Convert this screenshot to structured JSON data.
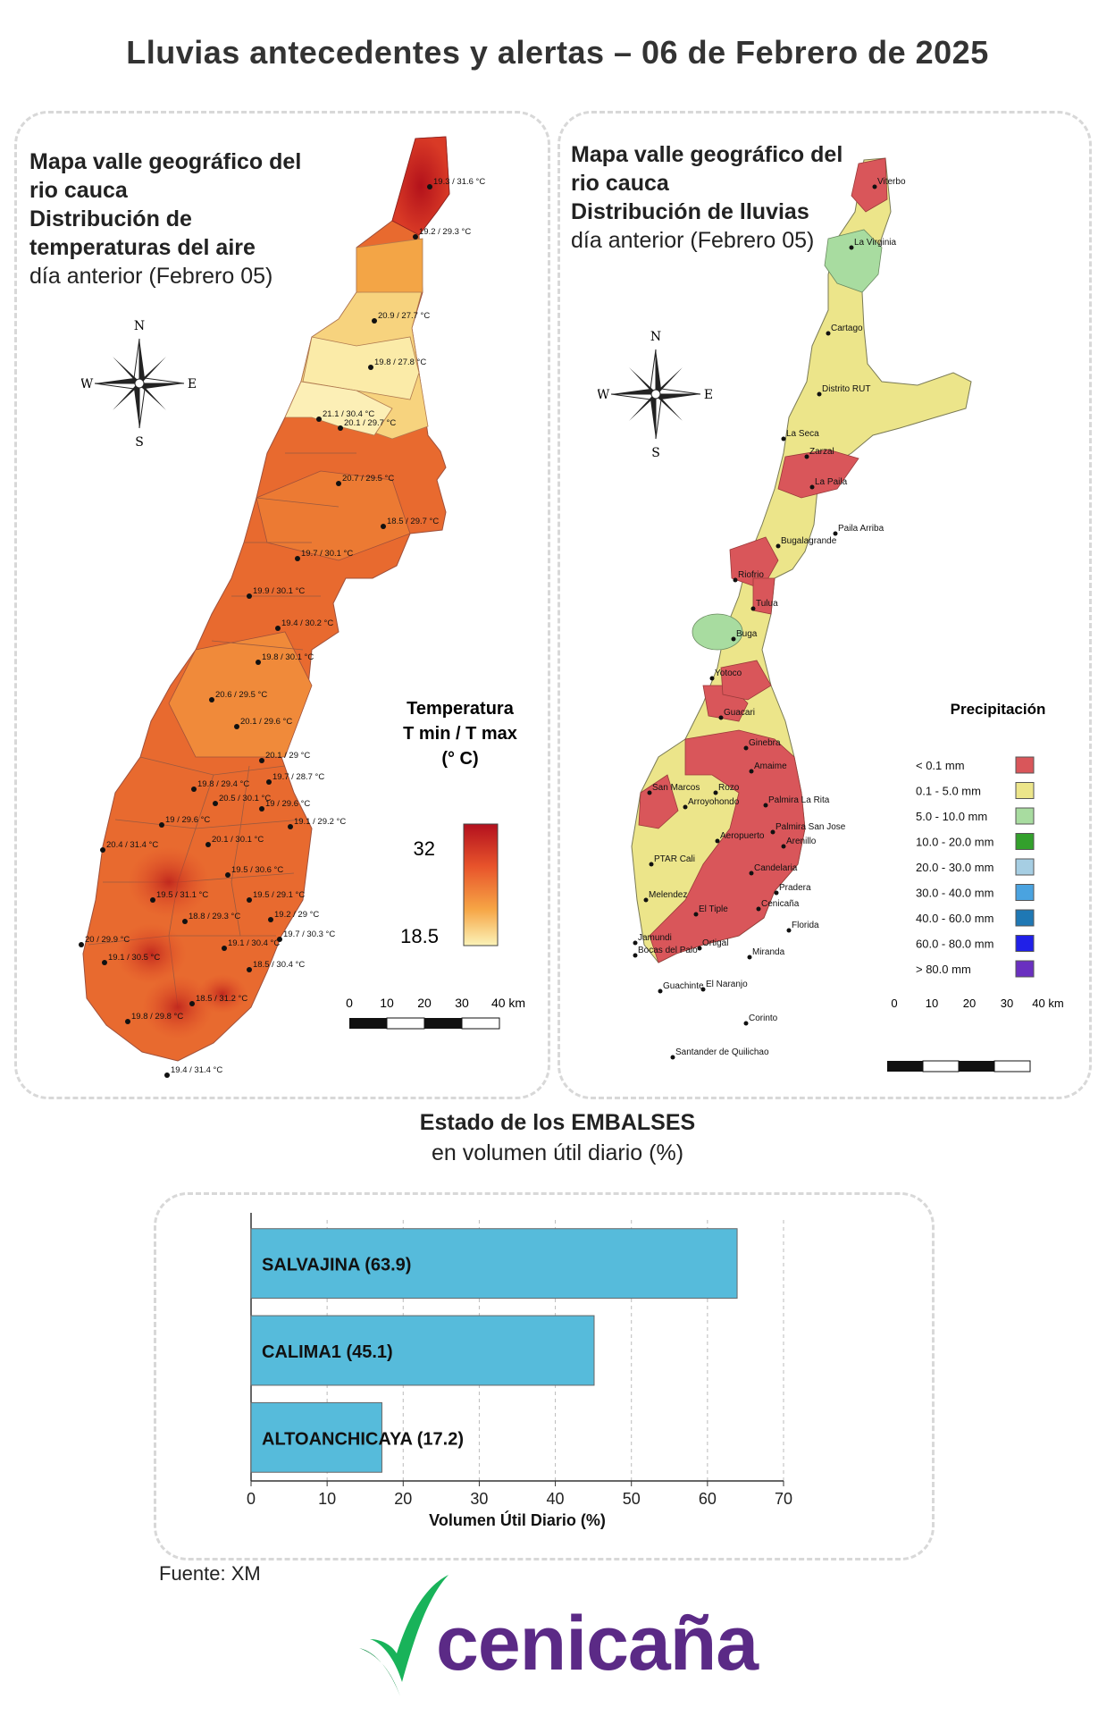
{
  "title": "Lluvias antecedentes y alertas – 06 de Febrero de 2025",
  "temp_panel": {
    "title_line1": "Mapa valle geográfico del",
    "title_line2": "rio cauca",
    "title_line3": "Distribución de",
    "title_line4": "temperaturas del aire",
    "subtitle": "día anterior (Febrero 05)",
    "legend_title_1": "Temperatura",
    "legend_title_2": "T min / T max",
    "legend_title_3": "(° C)",
    "legend_max": "32",
    "legend_min": "18.5",
    "scale_labels": [
      "0",
      "10",
      "20",
      "30",
      "40 km"
    ],
    "stations": [
      "19.3 / 31.6 °C",
      "19.2 / 29.3 °C",
      "20.9 / 27.7 °C",
      "19.8 / 27.8 °C",
      "21.1 / 30.4 °C",
      "20.1 / 29.7 °C",
      "20.7 / 29.5 °C",
      "18.5 / 29.7 °C",
      "19.7 / 30.1 °C",
      "19.9 / 30.1 °C",
      "19.4 / 30.2 °C",
      "19.8 / 30.1 °C",
      "20.6 / 29.5 °C",
      "20.1 / 29.6 °C",
      "20.1 / 29 °C",
      "19.8 / 29.4 °C",
      "19.7 / 28.7 °C",
      "20.5 / 30.1 °C",
      "19 / 29.6 °C",
      "19 / 29.6 °C",
      "19.1 / 29.2 °C",
      "20.4 / 31.4 °C",
      "20.1 / 30.1 °C",
      "19.5 / 30.6 °C",
      "19.5 / 31.1 °C",
      "19.5 / 29.1 °C",
      "19.2 / 29 °C",
      "18.8 / 29.3 °C",
      "19.7 / 30.3 °C",
      "20 / 29.9 °C",
      "19.1 / 30.4 °C",
      "19.1 / 30.5 °C",
      "18.5 / 30.4 °C",
      "18.5 / 31.2 °C",
      "19.8 / 29.8 °C",
      "19.4 / 31.4 °C"
    ]
  },
  "rain_panel": {
    "title_line1": "Mapa valle geográfico del",
    "title_line2": "rio cauca",
    "title_line3": "Distribución de lluvias",
    "subtitle": "día anterior (Febrero 05)",
    "legend_title": "Precipitación",
    "legend": [
      {
        "label": "< 0.1 mm",
        "color": "#d9565a"
      },
      {
        "label": "0.1 - 5.0 mm",
        "color": "#ece58a"
      },
      {
        "label": "5.0 - 10.0 mm",
        "color": "#a8dca0"
      },
      {
        "label": "10.0 - 20.0 mm",
        "color": "#33a02c"
      },
      {
        "label": "20.0 - 30.0 mm",
        "color": "#a6cee3"
      },
      {
        "label": "30.0 - 40.0 mm",
        "color": "#4aa3e0"
      },
      {
        "label": "40.0 - 60.0 mm",
        "color": "#1f78b4"
      },
      {
        "label": "60.0 - 80.0 mm",
        "color": "#2020e8"
      },
      {
        "label": "> 80.0 mm",
        "color": "#6a30c0"
      }
    ],
    "scale_labels": [
      "0",
      "10",
      "20",
      "30",
      "40 km"
    ],
    "places": [
      "Viterbo",
      "La Virginia",
      "Cartago",
      "Distrito RUT",
      "La Seca",
      "Zarzal",
      "La Paila",
      "Paila Arriba",
      "Bugalagrande",
      "Riofrio",
      "Tulua",
      "Buga",
      "Yotoco",
      "Guacari",
      "Ginebra",
      "Amaime",
      "San Marcos",
      "Rozo",
      "Palmira La Rita",
      "Arroyohondo",
      "Palmira San Jose",
      "Aeropuerto",
      "Arenillo",
      "PTAR Cali",
      "Candelaria",
      "Pradera",
      "Melendez",
      "Cenicaña",
      "El Tiple",
      "Florida",
      "Jamundi",
      "Bocas del Palo",
      "Ortigal",
      "Miranda",
      "Guachinte",
      "El Naranjo",
      "Corinto",
      "Santander de Quilichao"
    ]
  },
  "compass": {
    "n": "N",
    "s": "S",
    "e": "E",
    "w": "W"
  },
  "reservoirs": {
    "title": "Estado de los EMBALSES",
    "subtitle": "en volumen útil diario (%)",
    "source": "Fuente: XM"
  },
  "chart_data": {
    "type": "bar",
    "orientation": "horizontal",
    "categories": [
      "SALVAJINA (63.9)",
      "CALIMA1 (45.1)",
      "ALTOANCHICAYA (17.2)"
    ],
    "values": [
      63.9,
      45.1,
      17.2
    ],
    "xlabel": "Volumen Útil Diario (%)",
    "xlim": [
      0,
      70
    ],
    "xticks": [
      0,
      10,
      20,
      30,
      40,
      50,
      60,
      70
    ],
    "bar_color": "#56bbdb",
    "grid": "vertical dashed"
  },
  "logo": {
    "text": "cenicaña",
    "color": "#5b2a86",
    "mark_color": "#19b35a"
  }
}
